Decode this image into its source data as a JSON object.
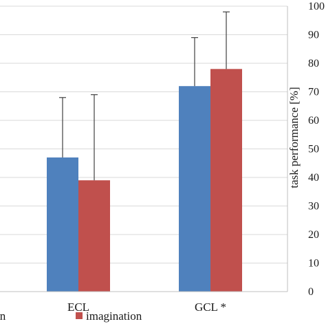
{
  "chart_data": {
    "type": "bar",
    "categories": [
      "ECL",
      "GCL *"
    ],
    "series": [
      {
        "name": "imagination",
        "color": "#4f81bd",
        "values": [
          47,
          72
        ],
        "error": [
          21,
          17
        ]
      },
      {
        "name": "imagination",
        "color": "#c0504d",
        "values": [
          39,
          78
        ],
        "error": [
          30,
          20
        ]
      }
    ],
    "ylabel": "task performance [%]",
    "ylim": [
      0,
      100
    ],
    "yticks": [
      "0",
      "10",
      "20",
      "30",
      "40",
      "50",
      "60",
      "70",
      "80",
      "90",
      "100"
    ],
    "grid": true,
    "legend_position": "bottom",
    "error_bars": true
  }
}
